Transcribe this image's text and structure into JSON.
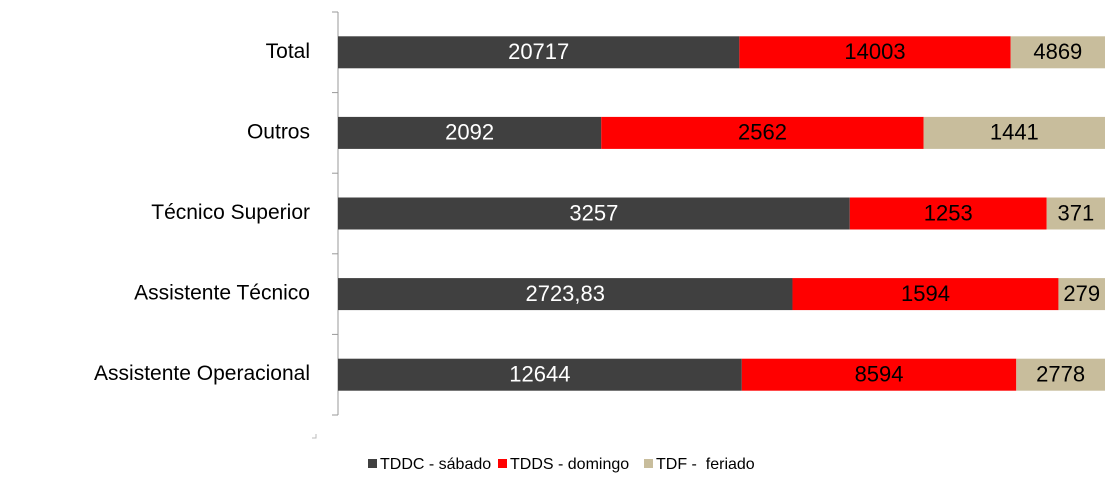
{
  "chart_data": {
    "type": "bar",
    "orientation": "horizontal",
    "stacking": "percent",
    "categories": [
      "Total",
      "Outros",
      "Técnico Superior",
      "Assistente Técnico",
      "Assistente Operacional"
    ],
    "series": [
      {
        "name": "TDDC - sábado",
        "color": "#404040",
        "label_color": "#ffffff",
        "values": [
          20717,
          2092,
          3257,
          2723.83,
          12644
        ],
        "value_labels": [
          "20717",
          "2092",
          "3257",
          "2723,83",
          "12644"
        ]
      },
      {
        "name": "TDDS - domingo",
        "color": "#ff0000",
        "label_color": "#000000",
        "values": [
          14003,
          2562,
          1253,
          1594,
          8594
        ]
      },
      {
        "name": "TDF -  feriado",
        "color": "#c8bd9c",
        "label_color": "#000000",
        "values": [
          4869,
          1441,
          371,
          279,
          2778
        ]
      }
    ],
    "legend": "bottom"
  }
}
